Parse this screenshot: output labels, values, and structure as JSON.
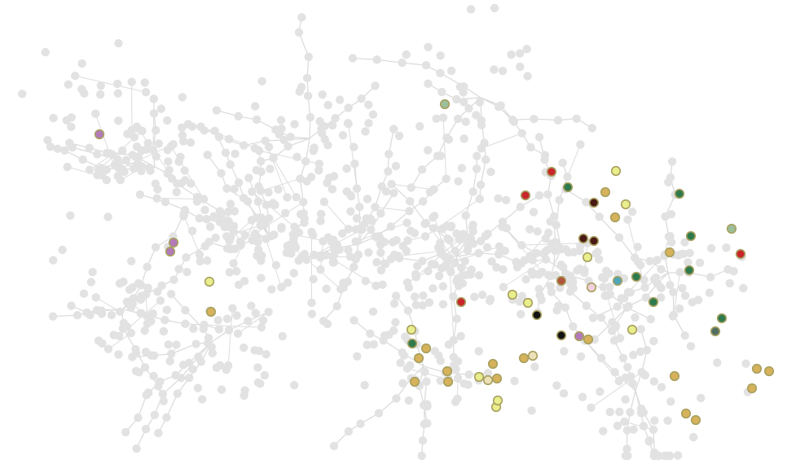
{
  "network": {
    "background_color": "#ffffff",
    "edge_color": "#dcdcdc",
    "node_color": "#e2e2e2",
    "highlight_stroke": "#a8a060",
    "palette": {
      "red": "#c8262a",
      "dark-green": "#2e7a4c",
      "gold": "#d6b25a",
      "lime": "#e9ee8c",
      "cream": "#ece0b6",
      "maroon": "#4a1a14",
      "black": "#141414",
      "violet": "#b27ab8",
      "teal": "#4ea6b8",
      "sage": "#9bbf9a",
      "slate-green": "#4f6f60",
      "pink": "#f0d0dc",
      "rust": "#b0553c"
    },
    "highlighted_nodes": [
      {
        "color": "sage"
      },
      {
        "color": "violet"
      },
      {
        "color": "violet"
      },
      {
        "color": "violet"
      },
      {
        "color": "lime"
      },
      {
        "color": "gold"
      },
      {
        "color": "red"
      },
      {
        "color": "red"
      },
      {
        "color": "dark-green"
      },
      {
        "color": "lime"
      },
      {
        "color": "gold"
      },
      {
        "color": "maroon"
      },
      {
        "color": "lime"
      },
      {
        "color": "gold"
      },
      {
        "color": "dark-green"
      },
      {
        "color": "sage"
      },
      {
        "color": "maroon"
      },
      {
        "color": "maroon"
      },
      {
        "color": "lime"
      },
      {
        "color": "dark-green"
      },
      {
        "color": "gold"
      },
      {
        "color": "red"
      },
      {
        "color": "dark-green"
      },
      {
        "color": "rust"
      },
      {
        "color": "pink"
      },
      {
        "color": "teal"
      },
      {
        "color": "dark-green"
      },
      {
        "color": "dark-green"
      },
      {
        "color": "red"
      },
      {
        "color": "lime"
      },
      {
        "color": "lime"
      },
      {
        "color": "black"
      },
      {
        "color": "black"
      },
      {
        "color": "violet"
      },
      {
        "color": "gold"
      },
      {
        "color": "lime"
      },
      {
        "color": "dark-green"
      },
      {
        "color": "slate-green"
      },
      {
        "color": "lime"
      },
      {
        "color": "dark-green"
      },
      {
        "color": "gold"
      },
      {
        "color": "gold"
      },
      {
        "color": "gold"
      },
      {
        "color": "gold"
      },
      {
        "color": "gold"
      },
      {
        "color": "gold"
      },
      {
        "color": "cream"
      },
      {
        "color": "gold"
      },
      {
        "color": "lime"
      },
      {
        "color": "cream"
      },
      {
        "color": "gold"
      },
      {
        "color": "lime"
      },
      {
        "color": "lime"
      },
      {
        "color": "gold"
      },
      {
        "color": "gold"
      },
      {
        "color": "gold"
      },
      {
        "color": "gold"
      },
      {
        "color": "gold"
      },
      {
        "color": "gold"
      }
    ]
  }
}
